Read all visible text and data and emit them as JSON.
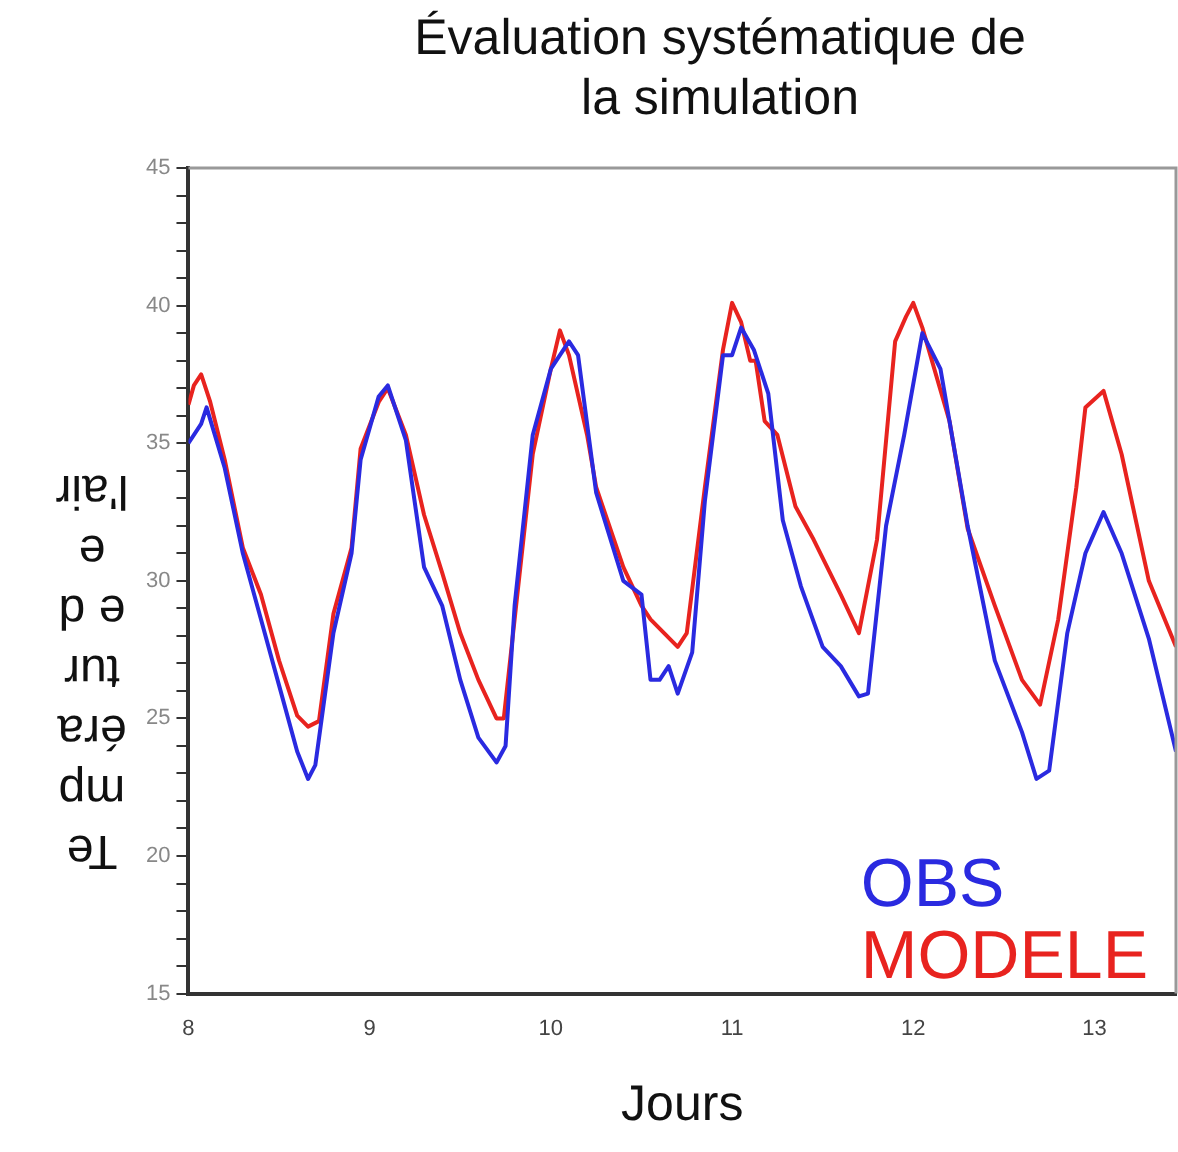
{
  "chart_data": {
    "type": "line",
    "title": "Évaluation systématique de la simulation",
    "xlabel": "Jours",
    "ylabel": "Température de l'air",
    "xlim": [
      8,
      13.45
    ],
    "xticks": [
      8,
      9,
      10,
      11,
      12,
      13
    ],
    "ylim": [
      15,
      45
    ],
    "yticks": [
      15,
      {
        "value": 16,
        "label": null
      },
      {
        "value": 17,
        "label": null
      },
      {
        "value": 18,
        "label": null
      },
      {
        "value": 19,
        "label": null
      },
      20,
      {
        "value": 21,
        "label": null
      },
      {
        "value": 22,
        "label": null
      },
      {
        "value": 23,
        "label": null
      },
      {
        "value": 24,
        "label": null
      },
      25,
      {
        "value": 26,
        "label": null
      },
      {
        "value": 27,
        "label": null
      },
      {
        "value": 28,
        "label": null
      },
      {
        "value": 29,
        "label": null
      },
      30,
      {
        "value": 31,
        "label": null
      },
      {
        "value": 32,
        "label": null
      },
      {
        "value": 33,
        "label": null
      },
      {
        "value": 34,
        "label": null
      },
      35,
      {
        "value": 36,
        "label": null
      },
      {
        "value": 37,
        "label": null
      },
      {
        "value": 38,
        "label": null
      },
      {
        "value": 39,
        "label": null
      },
      40,
      {
        "value": 41,
        "label": null
      },
      {
        "value": 42,
        "label": null
      },
      {
        "value": 43,
        "label": null
      },
      {
        "value": 44,
        "label": null
      },
      45
    ],
    "grid": false,
    "legend": "bottom right",
    "marker": "none",
    "line_style": "solid",
    "series": [
      {
        "name": "OBS",
        "color": "#2a2ae0",
        "x": [
          8.0,
          8.07,
          8.1,
          8.2,
          8.3,
          8.4,
          8.5,
          8.6,
          8.66,
          8.7,
          8.8,
          8.9,
          8.95,
          9.05,
          9.1,
          9.2,
          9.3,
          9.4,
          9.5,
          9.6,
          9.7,
          9.75,
          9.8,
          9.9,
          10.0,
          10.1,
          10.15,
          10.25,
          10.4,
          10.5,
          10.55,
          10.6,
          10.65,
          10.7,
          10.78,
          10.85,
          10.95,
          11.0,
          11.05,
          11.12,
          11.2,
          11.28,
          11.38,
          11.5,
          11.6,
          11.7,
          11.75,
          11.85,
          11.95,
          12.05,
          12.15,
          12.3,
          12.45,
          12.6,
          12.68,
          12.75,
          12.85,
          12.95,
          13.05,
          13.15,
          13.3,
          13.45
        ],
        "values": [
          35.0,
          35.7,
          36.3,
          34.1,
          31.0,
          28.6,
          26.2,
          23.8,
          22.8,
          23.3,
          28.1,
          31.0,
          34.4,
          36.7,
          37.1,
          35.1,
          30.5,
          29.1,
          26.4,
          24.3,
          23.4,
          24.0,
          29.1,
          35.3,
          37.7,
          38.7,
          38.2,
          33.2,
          30.0,
          29.5,
          26.4,
          26.4,
          26.9,
          25.9,
          27.4,
          32.9,
          38.2,
          38.2,
          39.2,
          38.4,
          36.8,
          32.2,
          29.8,
          27.6,
          26.9,
          25.8,
          25.9,
          32.0,
          35.3,
          39.0,
          37.7,
          32.0,
          27.1,
          24.5,
          22.8,
          23.1,
          28.1,
          31.0,
          32.5,
          31.0,
          27.9,
          23.8
        ]
      },
      {
        "name": "MODELE",
        "color": "#e8231f",
        "x": [
          8.0,
          8.03,
          8.07,
          8.12,
          8.2,
          8.3,
          8.4,
          8.5,
          8.6,
          8.66,
          8.72,
          8.8,
          8.9,
          8.95,
          9.05,
          9.1,
          9.2,
          9.3,
          9.4,
          9.5,
          9.6,
          9.7,
          9.74,
          9.8,
          9.9,
          10.0,
          10.05,
          10.1,
          10.2,
          10.25,
          10.4,
          10.5,
          10.55,
          10.7,
          10.75,
          10.85,
          10.95,
          11.0,
          11.05,
          11.1,
          11.13,
          11.18,
          11.25,
          11.35,
          11.45,
          11.6,
          11.7,
          11.8,
          11.9,
          11.96,
          12.0,
          12.05,
          12.2,
          12.3,
          12.45,
          12.6,
          12.7,
          12.8,
          12.9,
          12.95,
          13.05,
          13.15,
          13.3,
          13.45
        ],
        "values": [
          36.4,
          37.1,
          37.5,
          36.5,
          34.4,
          31.2,
          29.5,
          27.1,
          25.1,
          24.7,
          24.9,
          28.8,
          31.2,
          34.8,
          36.5,
          37.0,
          35.3,
          32.4,
          30.3,
          28.1,
          26.4,
          25.0,
          25.0,
          28.6,
          34.6,
          37.7,
          39.1,
          38.2,
          35.3,
          33.4,
          30.5,
          29.1,
          28.6,
          27.6,
          28.1,
          33.4,
          38.4,
          40.1,
          39.4,
          38.0,
          38.0,
          35.8,
          35.3,
          32.7,
          31.5,
          29.5,
          28.1,
          31.5,
          38.7,
          39.6,
          40.1,
          39.2,
          35.8,
          31.9,
          29.1,
          26.4,
          25.5,
          28.6,
          33.4,
          36.3,
          36.9,
          34.6,
          30.0,
          27.6
        ]
      }
    ]
  }
}
